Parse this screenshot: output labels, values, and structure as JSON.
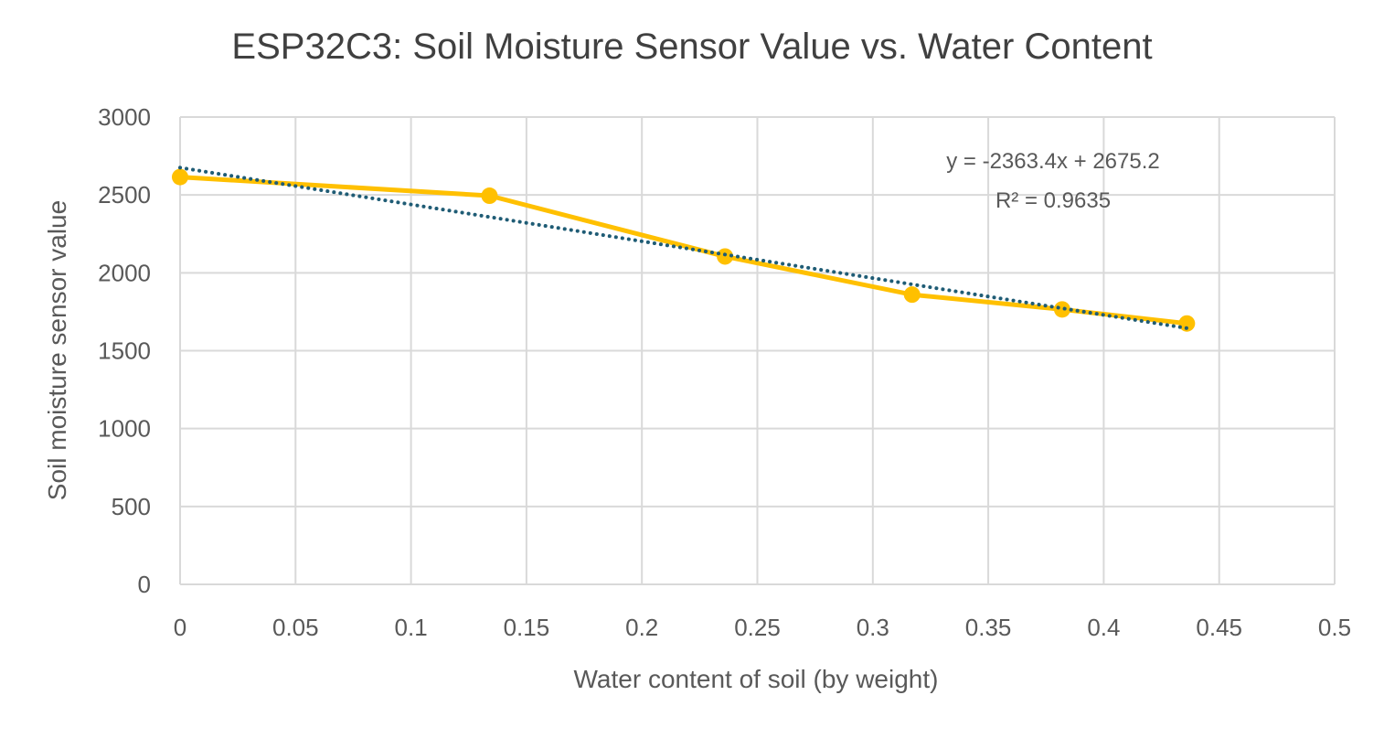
{
  "chart_data": {
    "type": "scatter",
    "title": "ESP32C3: Soil Moisture Sensor Value vs. Water Content",
    "xlabel": "Water content of soil (by weight)",
    "ylabel": "Soil moisture sensor value",
    "xlim": [
      0,
      0.5
    ],
    "ylim": [
      0,
      3000
    ],
    "x_ticks": [
      "0",
      "0.05",
      "0.1",
      "0.15",
      "0.2",
      "0.25",
      "0.3",
      "0.35",
      "0.4",
      "0.45",
      "0.5"
    ],
    "y_ticks": [
      "0",
      "500",
      "1000",
      "1500",
      "2000",
      "2500",
      "3000"
    ],
    "grid": true,
    "series": [
      {
        "x": [
          0,
          0.134,
          0.236,
          0.317,
          0.382,
          0.436
        ],
        "y": [
          2615,
          2495,
          2105,
          1860,
          1765,
          1675
        ],
        "color": "#FFC000",
        "style": "line-with-markers"
      }
    ],
    "trendline": {
      "type": "linear",
      "slope": -2363.4,
      "intercept": 2675.2,
      "x_range": [
        0,
        0.436
      ],
      "color": "#1F5C75",
      "style": "dotted",
      "equation_label": "y = -2363.4x + 2675.2",
      "r2_label": "R² = 0.9635"
    },
    "colors": {
      "grid": "#D9D9D9",
      "text": "#595959",
      "title": "#404040"
    }
  }
}
